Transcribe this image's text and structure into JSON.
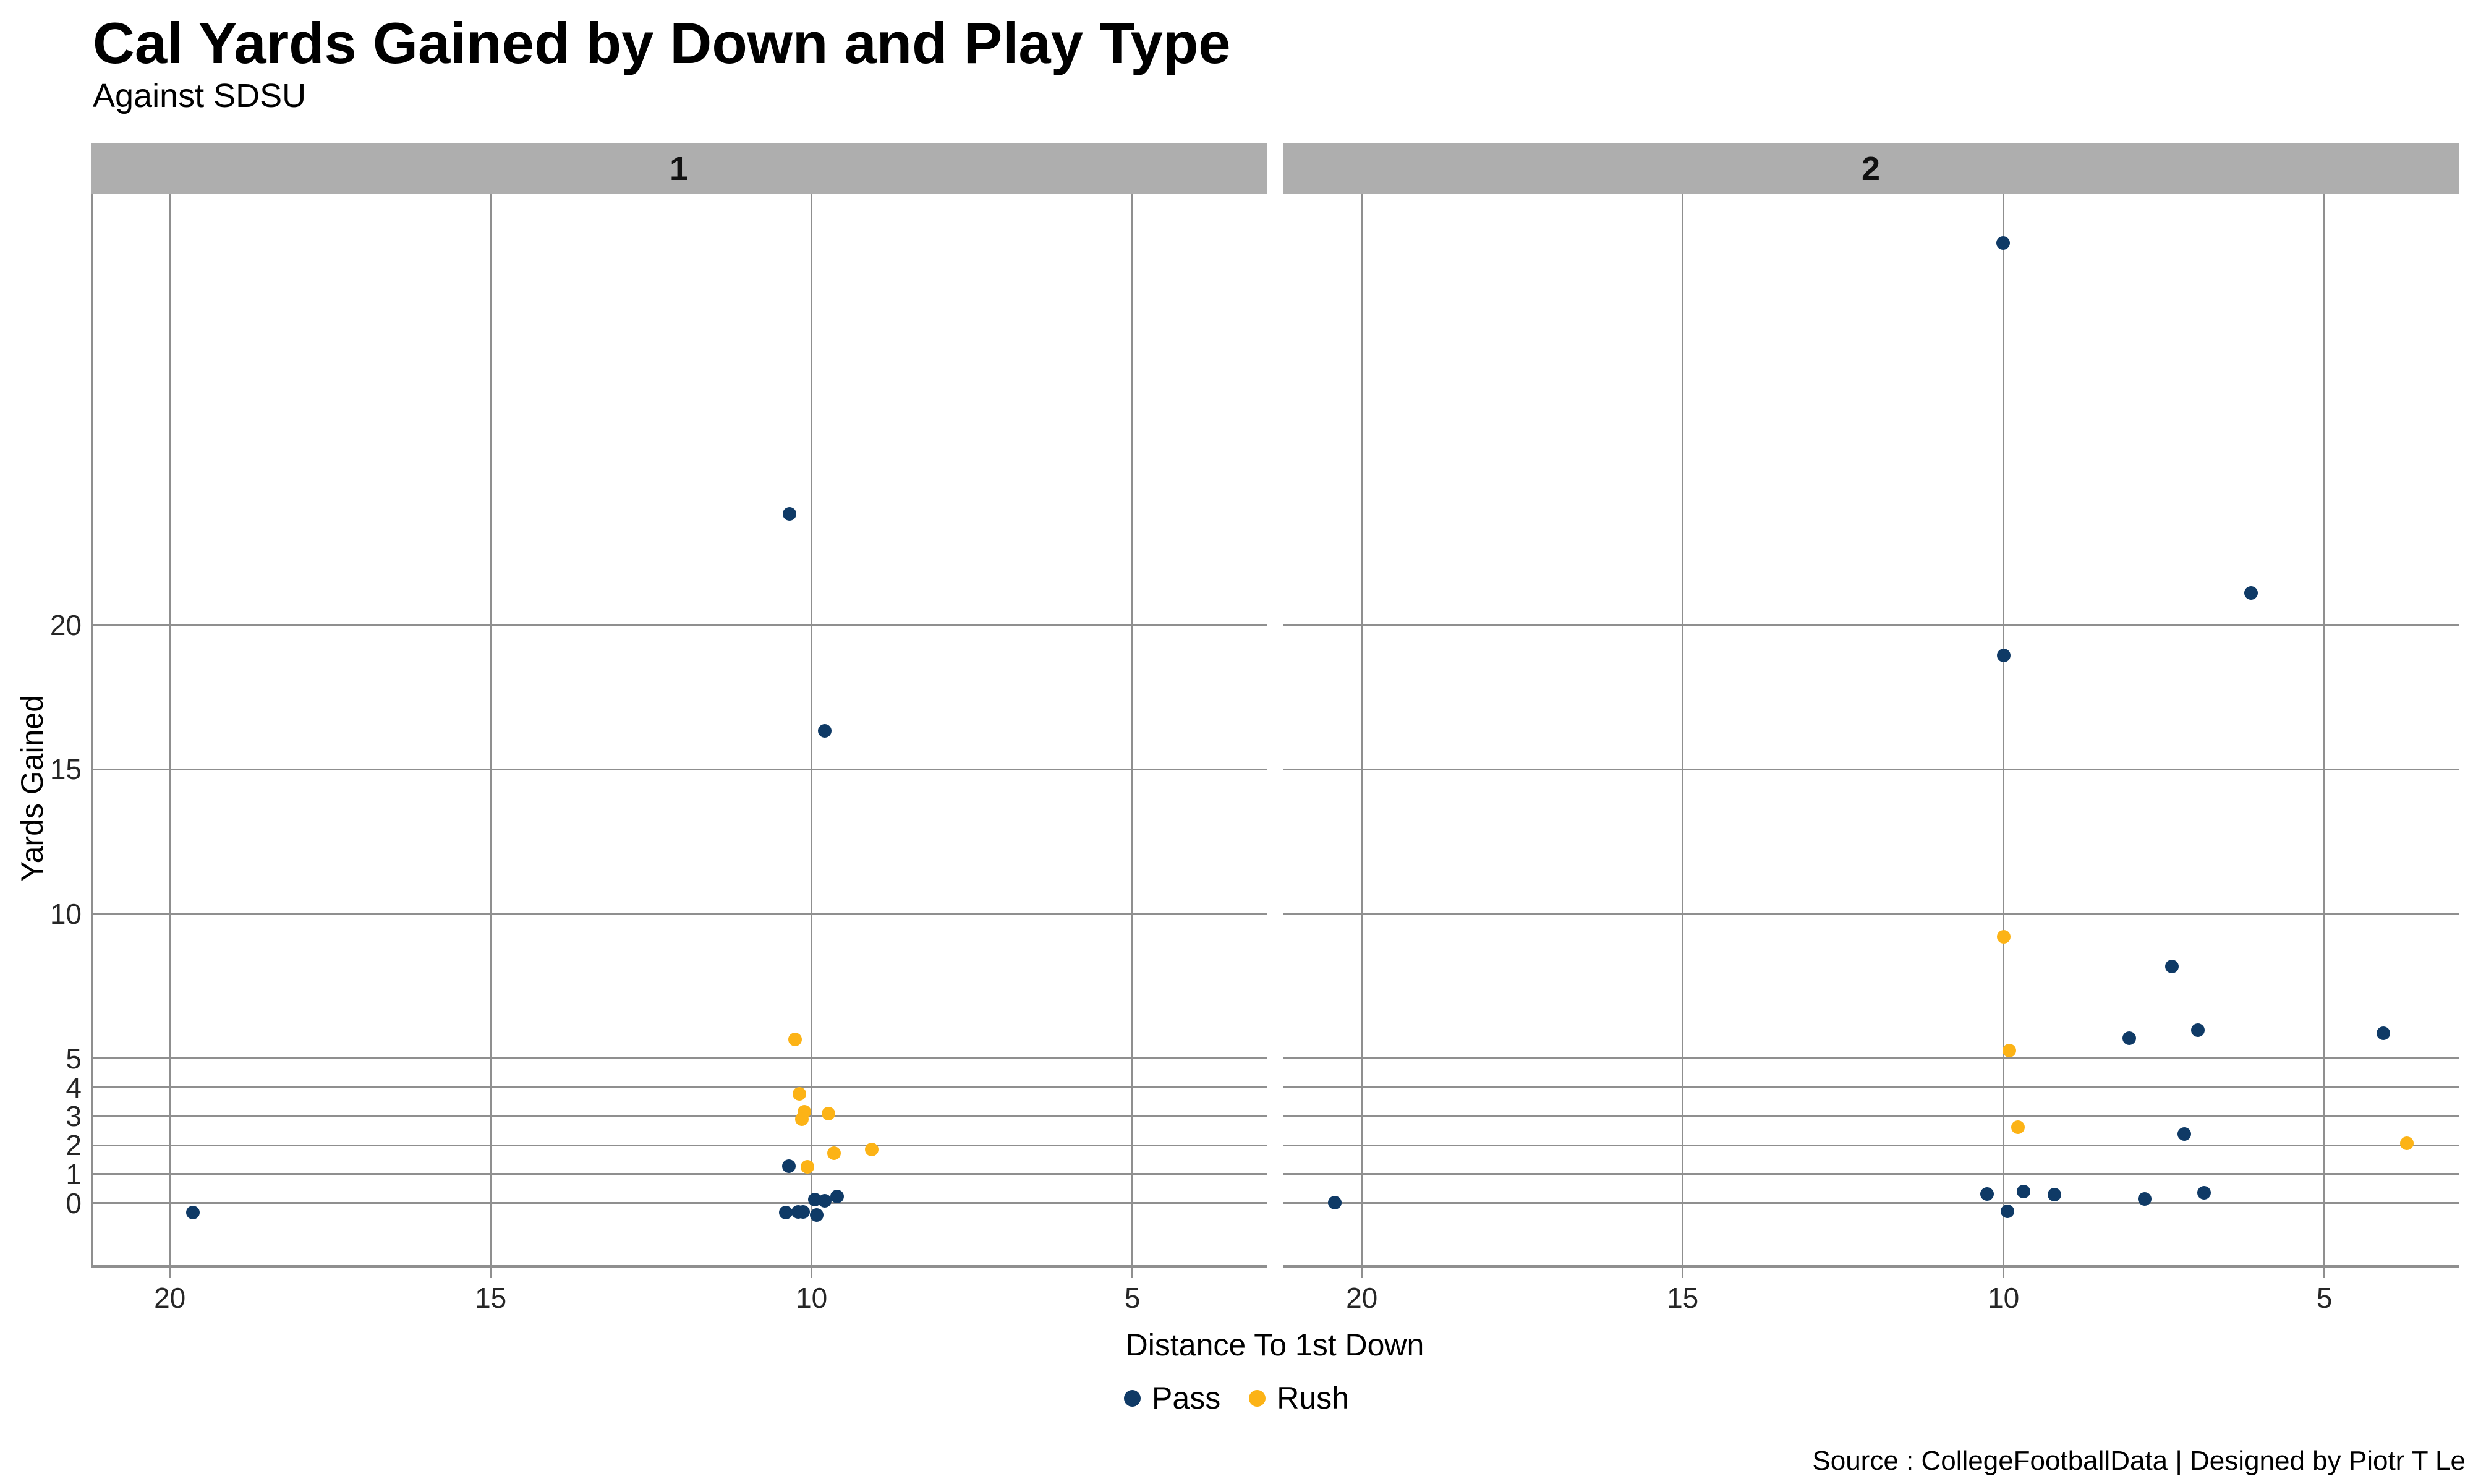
{
  "colors": {
    "pass": "#0f3a66",
    "rush": "#fcb316",
    "strip_bg": "#aeaeae",
    "gridline": "#8f8f8f",
    "tick_text": "#262626"
  },
  "chart_data": {
    "type": "scatter",
    "title": "Cal Yards Gained by Down and Play Type",
    "subtitle": "Against SDSU",
    "caption": "Source : CollegeFootballData | Designed by Piotr T Le",
    "xlabel": "Distance To 1st Down",
    "ylabel": "Yards Gained",
    "x_axis": {
      "breaks": [
        20,
        15,
        10,
        5
      ],
      "reversed": true,
      "range": [
        21.2,
        2.9
      ],
      "grid": true
    },
    "y_axis": {
      "breaks": [
        0,
        1,
        2,
        3,
        4,
        5,
        10,
        15,
        20
      ],
      "range": [
        -2.1,
        34.9
      ],
      "grid": true
    },
    "legend": {
      "position": "bottom",
      "entries": [
        {
          "label": "Pass",
          "color": "#0f3a66"
        },
        {
          "label": "Rush",
          "color": "#fcb316"
        }
      ]
    },
    "facets": [
      {
        "label": "1",
        "series": [
          {
            "name": "Pass",
            "color": "#0f3a66",
            "points": [
              [
                10.34,
                23.85
              ],
              [
                9.79,
                16.33
              ],
              [
                19.64,
                -0.33
              ],
              [
                10.35,
                1.28
              ],
              [
                9.95,
                0.11
              ],
              [
                9.79,
                0.07
              ],
              [
                9.6,
                0.23
              ],
              [
                10.4,
                -0.32
              ],
              [
                10.21,
                -0.31
              ],
              [
                10.13,
                -0.31
              ],
              [
                9.92,
                -0.41
              ]
            ]
          },
          {
            "name": "Rush",
            "color": "#fcb316",
            "points": [
              [
                10.26,
                5.67
              ],
              [
                10.19,
                3.77
              ],
              [
                10.11,
                3.16
              ],
              [
                10.15,
                2.89
              ],
              [
                9.74,
                3.09
              ],
              [
                9.65,
                1.73
              ],
              [
                9.06,
                1.86
              ],
              [
                10.06,
                1.25
              ]
            ]
          }
        ]
      },
      {
        "label": "2",
        "series": [
          {
            "name": "Pass",
            "color": "#0f3a66",
            "points": [
              [
                10.01,
                33.21
              ],
              [
                6.14,
                21.1
              ],
              [
                10.0,
                18.95
              ],
              [
                7.38,
                8.18
              ],
              [
                8.04,
                5.7
              ],
              [
                6.97,
                5.97
              ],
              [
                4.08,
                5.88
              ],
              [
                7.18,
                2.39
              ],
              [
                20.42,
                0.01
              ],
              [
                10.26,
                0.31
              ],
              [
                9.69,
                0.39
              ],
              [
                9.21,
                0.3
              ],
              [
                7.8,
                0.13
              ],
              [
                6.88,
                0.36
              ],
              [
                9.94,
                -0.29
              ]
            ]
          },
          {
            "name": "Rush",
            "color": "#fcb316",
            "points": [
              [
                10.0,
                9.21
              ],
              [
                9.91,
                5.27
              ],
              [
                9.78,
                2.62
              ],
              [
                3.72,
                2.06
              ]
            ]
          }
        ]
      }
    ]
  }
}
